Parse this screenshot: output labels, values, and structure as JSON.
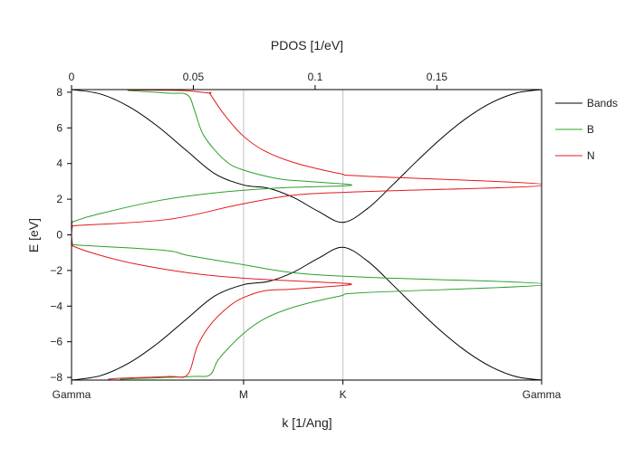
{
  "chart_data": {
    "type": "line",
    "top_axis": {
      "label": "PDOS [1/eV]",
      "range": [
        0,
        0.193
      ],
      "ticks": [
        0,
        0.05,
        0.1,
        0.15
      ],
      "tick_labels": [
        "0",
        "0.05",
        "0.1",
        "0.15"
      ]
    },
    "xlabel": "k [1/Ang]",
    "ylabel": "E [eV]",
    "xlim": [
      0,
      3.965
    ],
    "ylim": [
      -8.15,
      8.15
    ],
    "x_ticks": [
      0,
      1.451,
      2.289,
      3.965
    ],
    "x_tick_labels": [
      "Gamma",
      "M",
      "K",
      "Gamma"
    ],
    "y_ticks": [
      8,
      6,
      4,
      2,
      0,
      -2,
      -4,
      -6,
      -8
    ],
    "y_tick_labels": [
      "8",
      "6",
      "4",
      "2",
      "0",
      "−2",
      "−4",
      "−6",
      "−8"
    ],
    "vertical_gridlines_at": [
      1.451,
      2.289
    ],
    "grid": false,
    "legend_position": "right-outside",
    "band_k": [
      0,
      0.2418,
      0.4837,
      0.7255,
      0.9673,
      1.2092,
      1.451,
      1.6605,
      1.87,
      2.0795,
      2.289,
      2.4985,
      2.708,
      2.9175,
      3.127,
      3.3365,
      3.546,
      3.7555,
      3.965
    ],
    "series": [
      {
        "name": "Bands",
        "color": "#000000",
        "axis": "bottom",
        "values_upper": [
          8.15,
          7.906,
          7.195,
          6.093,
          4.74,
          3.427,
          2.796,
          2.617,
          2.102,
          1.323,
          0.7,
          1.482,
          2.796,
          4.167,
          5.458,
          6.572,
          7.428,
          7.966,
          8.15
        ],
        "values_lower": [
          -8.15,
          -7.906,
          -7.195,
          -6.093,
          -4.74,
          -3.427,
          -2.796,
          -2.617,
          -2.102,
          -1.323,
          -0.7,
          -1.482,
          -2.796,
          -4.167,
          -5.458,
          -6.572,
          -7.428,
          -7.966,
          -8.15
        ]
      },
      {
        "name": "B",
        "color": "#2ca02c",
        "axis": "top",
        "points_E_dos": [
          [
            -8.1,
            0.02
          ],
          [
            -8.05,
            0.029
          ],
          [
            -7.95,
            0.05
          ],
          [
            -7.85,
            0.0569
          ],
          [
            -6.94,
            0.0606
          ],
          [
            -5.57,
            0.0703
          ],
          [
            -4.71,
            0.0792
          ],
          [
            -4.05,
            0.0914
          ],
          [
            -3.44,
            0.11
          ],
          [
            -3.24,
            0.121
          ],
          [
            -2.78,
            0.195
          ],
          [
            -2.38,
            0.121
          ],
          [
            -2.13,
            0.0914
          ],
          [
            -1.67,
            0.0703
          ],
          [
            -1.16,
            0.048
          ],
          [
            -0.86,
            0.0375
          ],
          [
            -0.56,
            0.0011
          ],
          [
            -0.45,
            0.0003
          ],
          [
            0,
            0
          ],
          [
            0.7,
            0.0003
          ],
          [
            0.76,
            0.0011
          ],
          [
            1.16,
            0.0108
          ],
          [
            1.92,
            0.0357
          ],
          [
            2.38,
            0.0606
          ],
          [
            2.63,
            0.0851
          ],
          [
            2.78,
            0.1149
          ],
          [
            2.99,
            0.0978
          ],
          [
            3.14,
            0.0851
          ],
          [
            3.65,
            0.0703
          ],
          [
            4.2,
            0.0628
          ],
          [
            5.57,
            0.0543
          ],
          [
            6.94,
            0.0506
          ],
          [
            7.85,
            0.0476
          ],
          [
            7.95,
            0.04
          ],
          [
            8.1,
            0.023
          ]
        ]
      },
      {
        "name": "N",
        "color": "#e31a1c",
        "axis": "top",
        "points_E_dos": [
          [
            -8.1,
            0.015
          ],
          [
            -8.05,
            0.0197
          ],
          [
            -7.95,
            0.04
          ],
          [
            -7.85,
            0.0476
          ],
          [
            -6.23,
            0.0517
          ],
          [
            -5.06,
            0.0569
          ],
          [
            -4.05,
            0.0643
          ],
          [
            -3.54,
            0.0703
          ],
          [
            -3.14,
            0.0792
          ],
          [
            -3.04,
            0.0914
          ],
          [
            -2.78,
            0.1149
          ],
          [
            -2.63,
            0.0978
          ],
          [
            -2.43,
            0.0703
          ],
          [
            -2.13,
            0.048
          ],
          [
            -1.62,
            0.0257
          ],
          [
            -1.11,
            0.0108
          ],
          [
            -0.66,
            0.0011
          ],
          [
            -0.5,
            0.0003
          ],
          [
            0,
            0
          ],
          [
            0.45,
            0.0003
          ],
          [
            0.51,
            0.0011
          ],
          [
            0.86,
            0.0394
          ],
          [
            1.67,
            0.068
          ],
          [
            2.23,
            0.0914
          ],
          [
            2.43,
            0.121
          ],
          [
            2.8,
            0.195
          ],
          [
            3.29,
            0.121
          ],
          [
            3.44,
            0.11
          ],
          [
            4.05,
            0.0914
          ],
          [
            4.71,
            0.0792
          ],
          [
            5.57,
            0.0703
          ],
          [
            6.73,
            0.0628
          ],
          [
            7.9,
            0.0569
          ],
          [
            7.95,
            0.0565
          ],
          [
            8.1,
            0.045
          ],
          [
            8.13,
            0.023
          ]
        ]
      }
    ]
  }
}
